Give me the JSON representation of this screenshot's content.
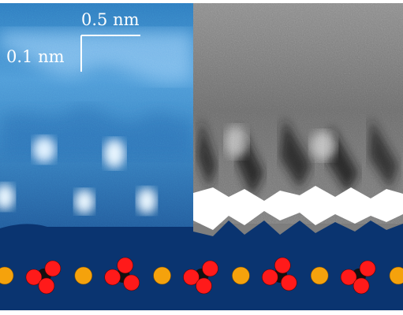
{
  "scale_bar": {
    "horizontal_label": "0.5 nm",
    "vertical_label": "0.1 nm"
  },
  "colors": {
    "background": "#ffffff",
    "substrate": "#0a3470",
    "map_light": "#e6f4ff",
    "map_mid": "#3d87c8",
    "map_dark": "#0c3878",
    "oxygen": "#ff1a1a",
    "carbon": "#111111",
    "calcium": "#f5a20c",
    "scale_bar": "#ffffff"
  },
  "panels": {
    "left": "blue-colormap-height-map",
    "right": "greyscale-map"
  },
  "icons": {
    "calcium": "orange-circle-icon",
    "carbonate": "red-black-molecule-icon"
  },
  "atom_row": [
    "calcium",
    "carbonate",
    "calcium",
    "carbonate",
    "calcium",
    "carbonate",
    "calcium",
    "carbonate",
    "calcium",
    "carbonate",
    "calcium"
  ]
}
